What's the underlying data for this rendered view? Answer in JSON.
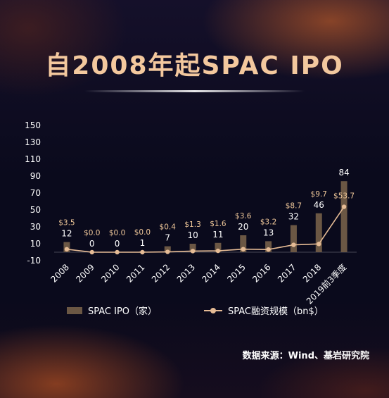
{
  "title": "自2008年起SPAC  IPO",
  "legend": {
    "bar_label": "SPAC IPO（家）",
    "line_label": "SPAC融资规模（bn$）"
  },
  "source": "数据来源：Wind、基岩研究院",
  "colors": {
    "bar": "#6b5744",
    "line": "#e5bb95",
    "line_label": "#f0c89a",
    "bar_label": "#ffffff",
    "axis_text": "#ffffff"
  },
  "chart_data": {
    "type": "bar",
    "categories": [
      "2008",
      "2009",
      "2010",
      "2011",
      "2012",
      "2013",
      "2014",
      "2015",
      "2016",
      "2017",
      "2018",
      "2019前3季度"
    ],
    "ylim": [
      -10,
      150
    ],
    "yticks": [
      -10,
      10,
      30,
      50,
      70,
      90,
      110,
      130,
      150
    ],
    "grid": false,
    "legend_position": "bottom",
    "series": [
      {
        "name": "SPAC IPO（家）",
        "type": "bar",
        "values": [
          12,
          0,
          0,
          1,
          7,
          10,
          11,
          20,
          13,
          32,
          46,
          84
        ],
        "labels": [
          "12",
          "0",
          "0",
          "1",
          "7",
          "10",
          "11",
          "20",
          "13",
          "32",
          "46",
          "84"
        ]
      },
      {
        "name": "SPAC融资规模（bn$）",
        "type": "line",
        "values": [
          3.5,
          0.0,
          0.0,
          0.0,
          0.4,
          1.3,
          1.6,
          3.6,
          3.2,
          8.7,
          9.7,
          53.7
        ],
        "labels": [
          "$3.5",
          "$0.0",
          "$0.0",
          "$0.0",
          "$0.4",
          "$1.3",
          "$1.6",
          "$3.6",
          "$3.2",
          "$8.7",
          "$9.7",
          "$53.7"
        ]
      }
    ]
  }
}
